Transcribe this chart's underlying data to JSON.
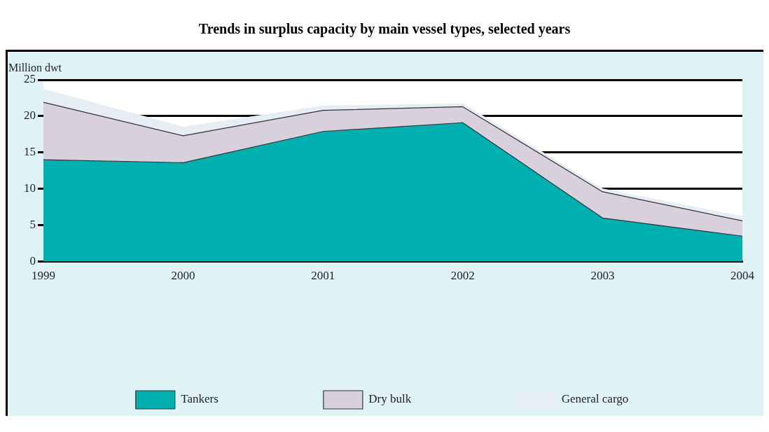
{
  "chart_data": {
    "type": "area",
    "title": "Trends in surplus capacity by main vessel types, selected years",
    "ylabel": "Million dwt",
    "categories": [
      "1999",
      "2000",
      "2001",
      "2002",
      "2003",
      "2004"
    ],
    "series": [
      {
        "name": "Tankers",
        "color": "#00b0b0",
        "values": [
          14.0,
          13.6,
          17.9,
          19.1,
          6.0,
          3.5
        ]
      },
      {
        "name": "Dry bulk",
        "color": "#d8d0dc",
        "values": [
          7.9,
          3.7,
          2.9,
          2.2,
          3.6,
          2.1
        ]
      },
      {
        "name": "General cargo",
        "color": "#e6eef4",
        "values": [
          1.8,
          1.2,
          0.6,
          0.4,
          0.4,
          0.6
        ]
      }
    ],
    "stacked": true,
    "ylim": [
      0,
      25
    ],
    "yticks": [
      0,
      5,
      10,
      15,
      20,
      25
    ],
    "grid": "y",
    "legend": "bottom"
  }
}
